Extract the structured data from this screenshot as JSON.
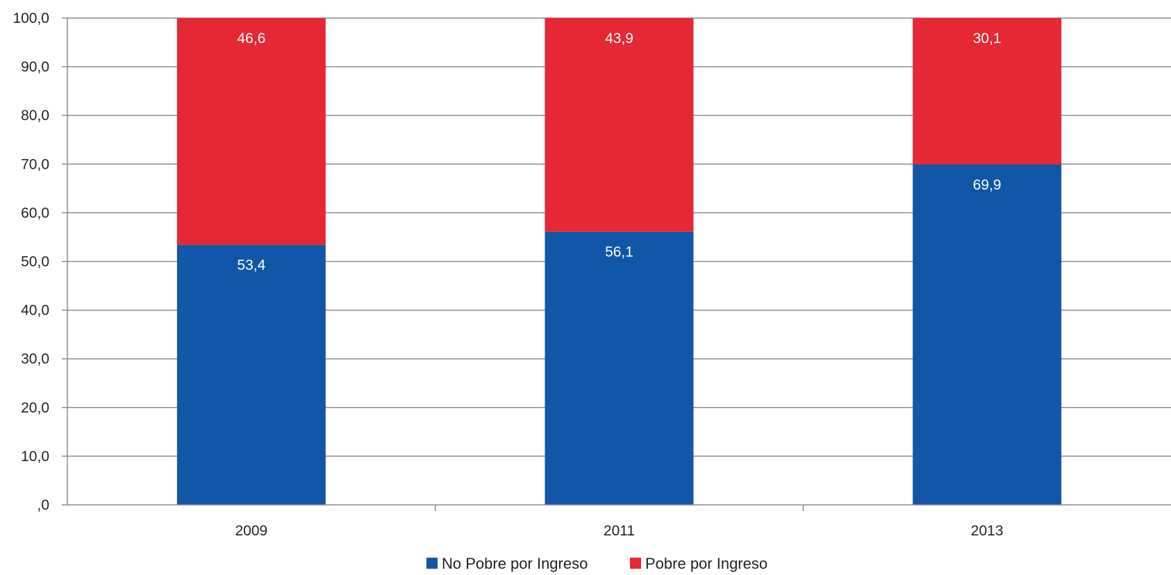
{
  "chart_data": {
    "type": "bar",
    "stacked": true,
    "categories": [
      "2009",
      "2011",
      "2013"
    ],
    "series": [
      {
        "name": "No Pobre por Ingreso",
        "color": "#1057A8",
        "values": [
          53.4,
          56.1,
          69.9
        ],
        "labels": [
          "53,4",
          "56,1",
          "69,9"
        ]
      },
      {
        "name": "Pobre por Ingreso",
        "color": "#E62834",
        "values": [
          46.6,
          43.9,
          30.1
        ],
        "labels": [
          "46,6",
          "43,9",
          "30,1"
        ]
      }
    ],
    "ylim": [
      0,
      100
    ],
    "yticks": [
      0,
      10,
      20,
      30,
      40,
      50,
      60,
      70,
      80,
      90,
      100
    ],
    "ytick_labels": [
      ",0",
      "10,0",
      "20,0",
      "30,0",
      "40,0",
      "50,0",
      "60,0",
      "70,0",
      "80,0",
      "90,0",
      "100,0"
    ],
    "grid": true,
    "legend": "bottom-center",
    "title": "",
    "xlabel": "",
    "ylabel": ""
  }
}
